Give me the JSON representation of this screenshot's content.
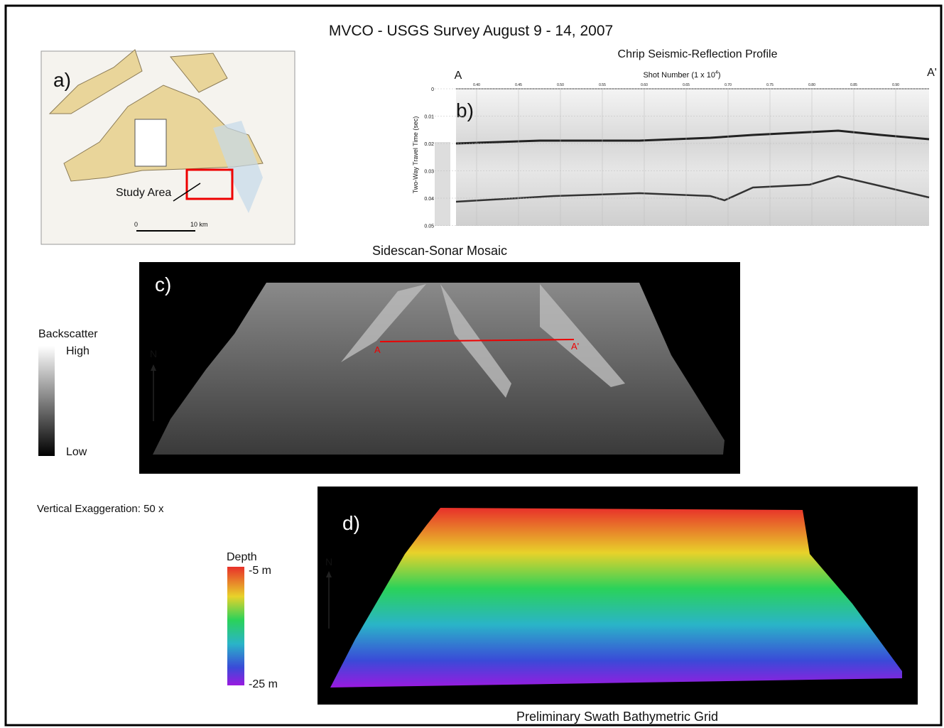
{
  "title": "MVCO  - USGS Survey August 9 - 14,  2007",
  "panel_a": {
    "label": "a)",
    "annotation": "Study Area",
    "scale_start": "0",
    "scale_end": "10 km"
  },
  "panel_b": {
    "label": "b)",
    "title": "Chrip Seismic-Reflection Profile",
    "x_label": "Shot Number (1 x 10",
    "x_label_exponent": "4",
    "x_label_end": ")",
    "y_label": "Two-Way Travel Time (sec)",
    "start_label": "A",
    "end_label": "A'",
    "x_ticks": [
      "0.40",
      "0.45",
      "0.50",
      "0.55",
      "0.60",
      "0.65",
      "0.70",
      "0.75",
      "0.80",
      "0.85",
      "0.90"
    ],
    "y_ticks": [
      "0",
      "0.01",
      "0.02",
      "0.03",
      "0.04",
      "0.05"
    ]
  },
  "panel_c": {
    "label": "c)",
    "title": "Sidescan-Sonar Mosaic",
    "line_start": "A",
    "line_end": "A'",
    "legend_title": "Backscatter",
    "legend_high": "High",
    "legend_low": "Low",
    "north": "N"
  },
  "vertical_exaggeration": "Vertical Exaggeration: 50 x",
  "panel_d": {
    "label": "d)",
    "caption": "Preliminary Swath Bathymetric Grid",
    "legend_title": "Depth",
    "legend_top": "-5 m",
    "legend_bottom": "-25 m",
    "north": "N"
  }
}
